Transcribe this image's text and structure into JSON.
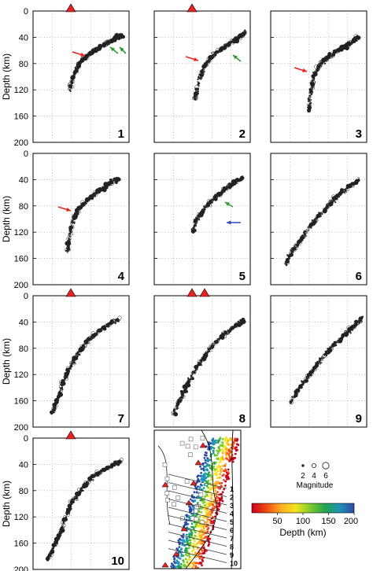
{
  "figure": {
    "ylabel": "Depth (km)",
    "magnitude_label": "Magnitude",
    "magnitude_values": [
      "2",
      "4",
      "6"
    ],
    "colorbar_label": "Depth (km)",
    "colorbar_ticks": [
      "50",
      "100",
      "150",
      "200"
    ],
    "map_profile_labels": [
      "1",
      "2",
      "3",
      "4",
      "5",
      "6",
      "7",
      "8",
      "9",
      "10"
    ]
  },
  "chart_data": {
    "type": "scatter",
    "ylim": [
      200,
      0
    ],
    "yticks": [
      "0",
      "40",
      "80",
      "120",
      "160",
      "200"
    ],
    "grid": true,
    "panels": [
      {
        "label": "1",
        "volcanoes": 1,
        "arrows": [
          "red",
          "green",
          "green"
        ],
        "series": [
          {
            "x": [
              0.38,
              0.42,
              0.48,
              0.55,
              0.62,
              0.7,
              0.78,
              0.86,
              0.93
            ],
            "y": [
              120,
              100,
              80,
              70,
              62,
              55,
              48,
              42,
              37
            ]
          }
        ]
      },
      {
        "label": "2",
        "volcanoes": 1,
        "arrows": [
          "red",
          "green"
        ],
        "series": [
          {
            "x": [
              0.42,
              0.46,
              0.52,
              0.58,
              0.66,
              0.74,
              0.82,
              0.9,
              0.95
            ],
            "y": [
              135,
              110,
              85,
              72,
              62,
              54,
              46,
              38,
              33
            ]
          }
        ]
      },
      {
        "label": "3",
        "volcanoes": 0,
        "arrows": [
          "red"
        ],
        "series": [
          {
            "x": [
              0.4,
              0.42,
              0.46,
              0.52,
              0.6,
              0.68,
              0.76,
              0.84,
              0.92
            ],
            "y": [
              150,
              120,
              95,
              80,
              70,
              62,
              55,
              48,
              40
            ]
          }
        ]
      },
      {
        "label": "4",
        "volcanoes": 0,
        "arrows": [
          "red"
        ],
        "series": [
          {
            "x": [
              0.36,
              0.38,
              0.42,
              0.48,
              0.56,
              0.64,
              0.72,
              0.8,
              0.9
            ],
            "y": [
              150,
              125,
              100,
              85,
              72,
              62,
              54,
              45,
              37
            ]
          }
        ]
      },
      {
        "label": "5",
        "volcanoes": 0,
        "arrows": [
          "green",
          "blue"
        ],
        "series": [
          {
            "x": [
              0.4,
              0.44,
              0.52,
              0.6,
              0.68,
              0.76,
              0.84,
              0.92
            ],
            "y": [
              120,
              100,
              85,
              72,
              62,
              52,
              44,
              38
            ]
          }
        ]
      },
      {
        "label": "6",
        "volcanoes": 0,
        "arrows": [],
        "series": [
          {
            "x": [
              0.15,
              0.22,
              0.32,
              0.42,
              0.52,
              0.62,
              0.72,
              0.82,
              0.92
            ],
            "y": [
              170,
              150,
              130,
              110,
              92,
              76,
              62,
              50,
              40
            ]
          }
        ]
      },
      {
        "label": "7",
        "volcanoes": 1,
        "arrows": [],
        "series": [
          {
            "x": [
              0.2,
              0.26,
              0.32,
              0.4,
              0.48,
              0.58,
              0.68,
              0.78,
              0.9
            ],
            "y": [
              180,
              155,
              130,
              105,
              85,
              68,
              55,
              44,
              36
            ]
          }
        ]
      },
      {
        "label": "8",
        "volcanoes": 2,
        "arrows": [],
        "series": [
          {
            "x": [
              0.2,
              0.28,
              0.36,
              0.46,
              0.56,
              0.66,
              0.76,
              0.86,
              0.94
            ],
            "y": [
              180,
              155,
              130,
              105,
              85,
              68,
              55,
              45,
              38
            ]
          }
        ]
      },
      {
        "label": "9",
        "volcanoes": 0,
        "arrows": [],
        "series": [
          {
            "x": [
              0.2,
              0.28,
              0.38,
              0.48,
              0.58,
              0.68,
              0.78,
              0.88,
              0.95
            ],
            "y": [
              165,
              145,
              125,
              105,
              88,
              72,
              58,
              45,
              35
            ]
          }
        ]
      },
      {
        "label": "10",
        "volcanoes": 1,
        "arrows": [],
        "series": [
          {
            "x": [
              0.15,
              0.22,
              0.28,
              0.34,
              0.42,
              0.52,
              0.62,
              0.72,
              0.82,
              0.92
            ],
            "y": [
              185,
              165,
              145,
              120,
              95,
              75,
              60,
              50,
              42,
              35
            ]
          }
        ]
      }
    ]
  },
  "colors": {
    "volcano": "#e8231f",
    "arrow_red": "#e8231f",
    "arrow_green": "#2e9a33",
    "arrow_blue": "#2b48b5",
    "colorbar": [
      "#c8001e",
      "#f04a12",
      "#fdae1e",
      "#f4e61c",
      "#7ecb2a",
      "#22a54a",
      "#1f93b8",
      "#2c4aa3"
    ]
  }
}
